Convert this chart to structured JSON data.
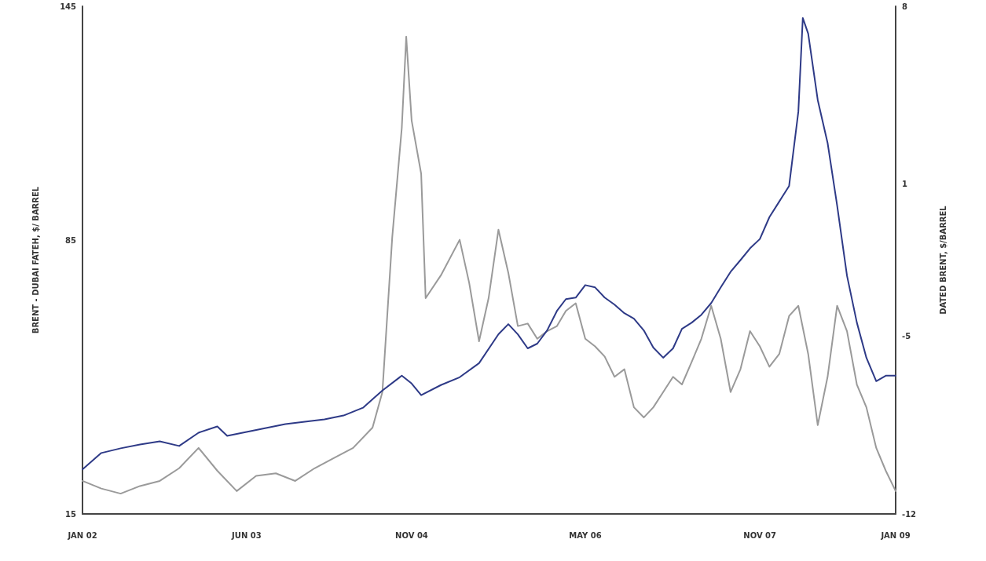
{
  "chart_data": {
    "type": "line",
    "ylabel": "BRENT - DUBAI FATEH, $/ BARREL",
    "y2label": "DATED BRENT, $/BARREL",
    "xlim": [
      "2002-01",
      "2009-01"
    ],
    "xticks": [
      {
        "value": "2002-01",
        "label": "JAN 02"
      },
      {
        "value": "2003-06",
        "label": "JUN 03"
      },
      {
        "value": "2004-11",
        "label": "NOV 04"
      },
      {
        "value": "2006-05",
        "label": "MAY 06"
      },
      {
        "value": "2007-11",
        "label": "NOV 07"
      },
      {
        "value": "2009-01",
        "label": "JAN 09"
      }
    ],
    "ylim": [
      15,
      145
    ],
    "yticks": [
      15,
      85,
      145
    ],
    "y2lim": [
      -12,
      8
    ],
    "y2ticks": [
      8,
      1,
      -5,
      -12
    ],
    "grid": false,
    "marker": "none",
    "line_style": "solid",
    "series": [
      {
        "axis": "y2",
        "color": "#9a9a9a",
        "x": [
          "2002-01",
          "2002-03",
          "2002-05",
          "2002-07",
          "2002-09",
          "2002-11",
          "2003-01",
          "2003-03",
          "2003-05",
          "2003-07",
          "2003-09",
          "2003-11",
          "2004-01",
          "2004-03",
          "2004-05",
          "2004-07",
          "2004-08",
          "2004-09",
          "2004-10",
          "2004-10-15",
          "2004-11",
          "2004-12",
          "2004-12-15",
          "2005-02",
          "2005-04",
          "2005-05",
          "2005-06",
          "2005-07",
          "2005-08",
          "2005-09",
          "2005-10",
          "2005-11",
          "2005-12",
          "2006-01",
          "2006-02",
          "2006-03",
          "2006-04",
          "2006-05",
          "2006-06",
          "2006-07",
          "2006-08",
          "2006-09",
          "2006-10",
          "2006-11",
          "2006-12",
          "2007-01",
          "2007-02",
          "2007-03",
          "2007-04",
          "2007-05",
          "2007-06",
          "2007-07",
          "2007-08",
          "2007-09",
          "2007-10",
          "2007-11",
          "2007-12",
          "2008-01",
          "2008-02",
          "2008-03",
          "2008-04",
          "2008-05",
          "2008-06",
          "2008-07",
          "2008-08",
          "2008-09",
          "2008-10",
          "2008-11",
          "2008-12",
          "2009-01"
        ],
        "values": [
          -10.7,
          -11.0,
          -11.2,
          -10.9,
          -10.7,
          -10.2,
          -9.4,
          -10.3,
          -11.1,
          -10.5,
          -10.4,
          -10.7,
          -10.2,
          -9.8,
          -9.4,
          -8.6,
          -7.2,
          -1.1,
          3.2,
          6.8,
          3.5,
          1.4,
          -3.5,
          -2.6,
          -1.2,
          -2.9,
          -5.2,
          -3.5,
          -0.8,
          -2.5,
          -4.6,
          -4.5,
          -5.1,
          -4.8,
          -4.6,
          -4.0,
          -3.7,
          -5.1,
          -5.4,
          -5.8,
          -6.6,
          -6.3,
          -7.8,
          -8.2,
          -7.8,
          -7.2,
          -6.6,
          -6.9,
          -6.0,
          -5.1,
          -3.8,
          -5.1,
          -7.2,
          -6.3,
          -4.8,
          -5.4,
          -6.2,
          -5.7,
          -4.2,
          -3.8,
          -5.7,
          -8.5,
          -6.6,
          -3.8,
          -4.8,
          -6.9,
          -7.8,
          -9.4,
          -10.3,
          -11.1
        ]
      },
      {
        "axis": "y",
        "color": "#2e3a87",
        "x": [
          "2002-01",
          "2002-03",
          "2002-05",
          "2002-07",
          "2002-09",
          "2002-11",
          "2003-01",
          "2003-03",
          "2003-04",
          "2003-06",
          "2003-08",
          "2003-10",
          "2003-12",
          "2004-02",
          "2004-04",
          "2004-06",
          "2004-08",
          "2004-10",
          "2004-11",
          "2004-12",
          "2005-02",
          "2005-04",
          "2005-06",
          "2005-08",
          "2005-09",
          "2005-10",
          "2005-11",
          "2005-12",
          "2006-01",
          "2006-02",
          "2006-03",
          "2006-04",
          "2006-05",
          "2006-06",
          "2006-07",
          "2006-08",
          "2006-09",
          "2006-10",
          "2006-11",
          "2006-12",
          "2007-01",
          "2007-02",
          "2007-03",
          "2007-04",
          "2007-05",
          "2007-06",
          "2007-07",
          "2007-08",
          "2007-09",
          "2007-10",
          "2007-11",
          "2007-12",
          "2008-01",
          "2008-02",
          "2008-03",
          "2008-03-15",
          "2008-04",
          "2008-05",
          "2008-06",
          "2008-07",
          "2008-08",
          "2008-09",
          "2008-10",
          "2008-11",
          "2008-12",
          "2009-01"
        ],
        "values": [
          26.4,
          30.6,
          31.8,
          32.8,
          33.6,
          32.4,
          35.8,
          37.4,
          35,
          36,
          37,
          38,
          38.6,
          39.2,
          40.2,
          42.2,
          46.6,
          50.4,
          48.4,
          45.4,
          48,
          50,
          53.6,
          61,
          63.6,
          61,
          57.4,
          58.6,
          62,
          67,
          70,
          70.4,
          73.6,
          73,
          70.4,
          68.6,
          66.4,
          65,
          62,
          57.6,
          55,
          57.4,
          62.4,
          64,
          66,
          69,
          73,
          77,
          80,
          83,
          85.4,
          91,
          95,
          99,
          118,
          142,
          138,
          121,
          110,
          94,
          76,
          64,
          55,
          49,
          50.4,
          50.4
        ]
      }
    ]
  }
}
